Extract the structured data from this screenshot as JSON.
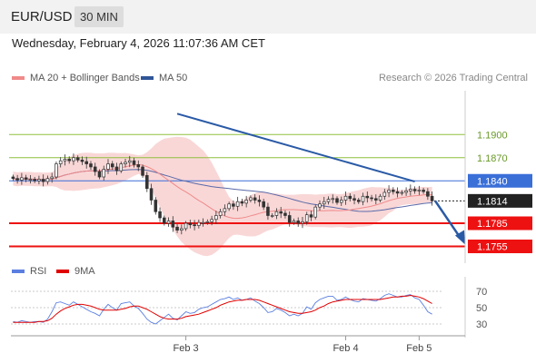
{
  "header": {
    "pair": "EUR/USD",
    "timeframe": "30 MIN"
  },
  "datetime": "Wednesday, February 4, 2026 11:07:36 AM CET",
  "legend": {
    "ma20": "MA 20 + Bollinger Bands",
    "ma50": "MA 50"
  },
  "copyright": "Research © 2026 Trading Central",
  "rsi_legend": {
    "rsi": "RSI",
    "ma": "9MA"
  },
  "colors": {
    "ma20": "#f08a8a",
    "ma50": "#2f5597",
    "band": "#f7c9c9",
    "rsi": "#5b7fe0",
    "rsi_ma": "#e00000",
    "target": "#8fbf3f",
    "support": "#ee1111",
    "resistance": "#3a6fd8",
    "arrow": "#2a5aa6"
  },
  "chart_data": [
    {
      "type": "candlestick",
      "title": "EUR/USD 30 MIN",
      "x_ticks": [
        "Feb 3",
        "Feb 4",
        "Feb 5"
      ],
      "ylim": [
        1.1745,
        1.1945
      ],
      "levels": [
        {
          "label": "1.1900",
          "value": 1.19,
          "kind": "target"
        },
        {
          "label": "1.1870",
          "value": 1.187,
          "kind": "target"
        },
        {
          "label": "1.1840",
          "value": 1.184,
          "kind": "resistance"
        },
        {
          "label": "1.1814",
          "value": 1.1814,
          "kind": "last"
        },
        {
          "label": "1.1785",
          "value": 1.1785,
          "kind": "support"
        },
        {
          "label": "1.1755",
          "value": 1.1755,
          "kind": "support"
        }
      ],
      "close": [
        1.1843,
        1.1841,
        1.1844,
        1.1842,
        1.1842,
        1.184,
        1.1842,
        1.1839,
        1.1843,
        1.1845,
        1.1862,
        1.1866,
        1.1868,
        1.1866,
        1.187,
        1.1867,
        1.1865,
        1.1862,
        1.1858,
        1.1852,
        1.1845,
        1.1855,
        1.1862,
        1.1858,
        1.1853,
        1.1862,
        1.1864,
        1.1866,
        1.1861,
        1.1858,
        1.1847,
        1.183,
        1.1815,
        1.18,
        1.1792,
        1.1785,
        1.1788,
        1.178,
        1.1776,
        1.1778,
        1.1785,
        1.1783,
        1.1782,
        1.1786,
        1.1786,
        1.1787,
        1.179,
        1.1795,
        1.18,
        1.1804,
        1.181,
        1.1807,
        1.1813,
        1.1811,
        1.1815,
        1.1818,
        1.1815,
        1.1813,
        1.1806,
        1.1795,
        1.1795,
        1.18,
        1.1798,
        1.1795,
        1.1786,
        1.1788,
        1.1785,
        1.1787,
        1.1796,
        1.1793,
        1.1806,
        1.181,
        1.1813,
        1.1816,
        1.1817,
        1.1812,
        1.1815,
        1.182,
        1.1817,
        1.1815,
        1.1813,
        1.182,
        1.1818,
        1.1817,
        1.1815,
        1.182,
        1.1825,
        1.1828,
        1.1826,
        1.1824,
        1.1825,
        1.1827,
        1.1829,
        1.1827,
        1.1828,
        1.1826,
        1.182,
        1.1814
      ],
      "last": 1.1814
    },
    {
      "type": "line",
      "title": "RSI",
      "yticks": [
        30,
        50,
        70
      ],
      "ylim": [
        20,
        80
      ],
      "series": [
        {
          "name": "RSI",
          "values": [
            33,
            32,
            34,
            33,
            32,
            33,
            33,
            32,
            36,
            45,
            56,
            57,
            55,
            53,
            57,
            54,
            51,
            48,
            45,
            43,
            40,
            48,
            54,
            50,
            47,
            55,
            56,
            57,
            52,
            49,
            43,
            36,
            32,
            30,
            34,
            38,
            42,
            37,
            35,
            40,
            45,
            43,
            44,
            48,
            50,
            51,
            54,
            57,
            60,
            61,
            63,
            60,
            62,
            59,
            60,
            62,
            58,
            55,
            50,
            44,
            45,
            49,
            47,
            44,
            40,
            42,
            40,
            43,
            51,
            48,
            56,
            60,
            62,
            64,
            64,
            59,
            60,
            63,
            60,
            58,
            57,
            61,
            60,
            59,
            58,
            61,
            65,
            67,
            65,
            63,
            63,
            65,
            66,
            62,
            60,
            53,
            45,
            42
          ]
        },
        {
          "name": "9MA",
          "values": [
            32,
            32,
            32,
            32,
            32,
            32,
            33,
            33,
            34,
            37,
            42,
            46,
            49,
            51,
            53,
            54,
            54,
            53,
            52,
            50,
            48,
            47,
            47,
            47,
            47,
            48,
            49,
            51,
            52,
            52,
            50,
            48,
            45,
            42,
            39,
            37,
            36,
            36,
            36,
            37,
            39,
            40,
            41,
            42,
            44,
            46,
            48,
            50,
            53,
            55,
            57,
            58,
            59,
            59,
            60,
            60,
            60,
            59,
            57,
            55,
            53,
            51,
            49,
            47,
            45,
            44,
            43,
            43,
            44,
            45,
            47,
            50,
            52,
            55,
            57,
            58,
            59,
            60,
            60,
            60,
            60,
            60,
            60,
            60,
            60,
            60,
            61,
            62,
            63,
            63,
            64,
            64,
            65,
            64,
            63,
            61,
            58,
            55
          ]
        }
      ]
    }
  ]
}
